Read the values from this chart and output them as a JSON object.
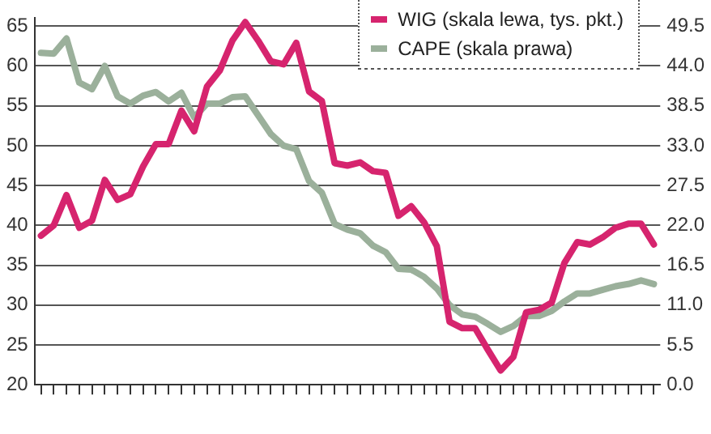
{
  "chart_data": {
    "type": "line",
    "categories": [
      null,
      null,
      null,
      null,
      null,
      null,
      null,
      null,
      null,
      null,
      null,
      null,
      null,
      null,
      null,
      null,
      null,
      null,
      null,
      null,
      null,
      null,
      null,
      null,
      null,
      null,
      null,
      null,
      null,
      null,
      null,
      null,
      null,
      null,
      null,
      null,
      null,
      null,
      null,
      null,
      null,
      null,
      null,
      null,
      null,
      null,
      null,
      null,
      null
    ],
    "series": [
      {
        "name": "WIG (skala lewa, tys. pkt.)",
        "color": "#d6246e",
        "axis": "y",
        "values": [
          38.7,
          40.0,
          43.8,
          39.7,
          40.6,
          45.7,
          43.2,
          43.9,
          47.4,
          50.2,
          50.2,
          54.4,
          51.8,
          57.4,
          59.4,
          63.2,
          65.5,
          63.2,
          60.6,
          60.2,
          62.9,
          56.8,
          55.6,
          47.8,
          47.5,
          47.9,
          46.8,
          46.6,
          41.2,
          42.4,
          40.4,
          37.4,
          27.9,
          27.1,
          27.1,
          24.4,
          21.8,
          23.5,
          29.1,
          29.4,
          30.3,
          35.3,
          37.9,
          37.6,
          38.5,
          39.7,
          40.2,
          40.2,
          37.6
        ]
      },
      {
        "name": "CAPE (skala prawa)",
        "color": "#9bb09b",
        "axis": "y2",
        "values": [
          45.8,
          45.7,
          47.8,
          41.7,
          40.8,
          44.0,
          39.8,
          38.8,
          39.9,
          40.4,
          39.1,
          40.3,
          36.9,
          38.8,
          38.8,
          39.7,
          39.8,
          37.2,
          34.6,
          33.0,
          32.5,
          28.1,
          26.5,
          22.2,
          21.4,
          20.9,
          19.2,
          18.3,
          16.0,
          15.9,
          14.9,
          13.3,
          11.0,
          9.7,
          9.4,
          8.4,
          7.3,
          8.1,
          9.5,
          9.5,
          10.2,
          11.5,
          12.6,
          12.6,
          13.1,
          13.6,
          13.9,
          14.4,
          13.9
        ]
      }
    ],
    "ylim": [
      20,
      66
    ],
    "yticks": [
      20,
      25,
      30,
      35,
      40,
      45,
      50,
      55,
      60,
      65
    ],
    "y2lim": [
      0,
      50.6
    ],
    "y2ticks": [
      {
        "value": 0,
        "label": "0.0"
      },
      {
        "value": 5.5,
        "label": "5.5"
      },
      {
        "value": 11,
        "label": "11.0"
      },
      {
        "value": 16.5,
        "label": "16.5"
      },
      {
        "value": 22,
        "label": "22.0"
      },
      {
        "value": 27.5,
        "label": "27.5"
      },
      {
        "value": 33,
        "label": "33.0"
      },
      {
        "value": 38.5,
        "label": "38.5"
      },
      {
        "value": 44,
        "label": "44.0"
      },
      {
        "value": 49.5,
        "label": "49.5"
      }
    ],
    "grid": "y",
    "legend": "top right",
    "marker": "none",
    "line_style": "solid"
  }
}
